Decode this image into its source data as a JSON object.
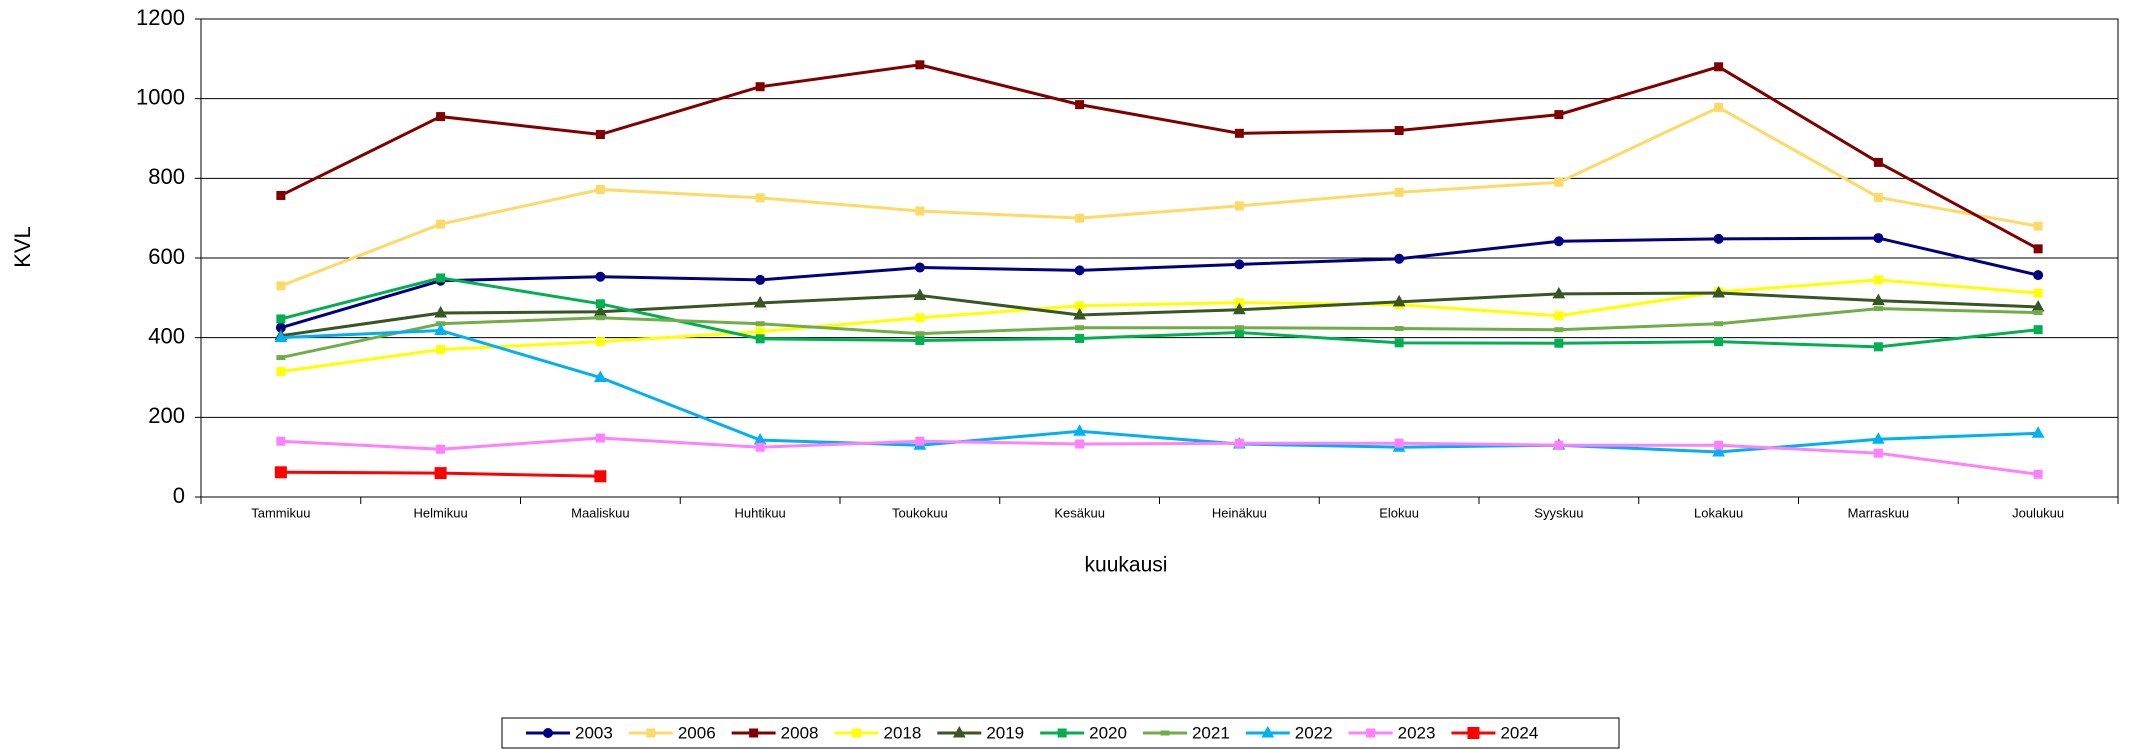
{
  "chart_data": {
    "type": "line",
    "x_label": "kuukausi",
    "y_label": "KVL",
    "categories": [
      "Tammikuu",
      "Helmikuu",
      "Maaliskuu",
      "Huhtikuu",
      "Toukokuu",
      "Kesäkuu",
      "Heinäkuu",
      "Elokuu",
      "Syyskuu",
      "Lokakuu",
      "Marraskuu",
      "Joulukuu"
    ],
    "ylim": [
      0,
      1200
    ],
    "yticks": [
      0,
      200,
      400,
      600,
      800,
      1000,
      1200
    ],
    "grid": true,
    "legend": "bottom",
    "series": [
      {
        "name": "2003",
        "color": "#000080",
        "marker": "circle",
        "values": [
          425,
          543,
          553,
          545,
          576,
          569,
          584,
          598,
          642,
          648,
          650,
          557
        ]
      },
      {
        "name": "2006",
        "color": "#ffd966",
        "marker": "square",
        "values": [
          530,
          685,
          772,
          751,
          718,
          700,
          731,
          765,
          790,
          978,
          752,
          680
        ]
      },
      {
        "name": "2008",
        "color": "#800000",
        "marker": "square",
        "values": [
          757,
          955,
          910,
          1030,
          1085,
          985,
          913,
          920,
          960,
          1080,
          840,
          623
        ]
      },
      {
        "name": "2018",
        "color": "#ffff00",
        "marker": "square",
        "values": [
          315,
          370,
          390,
          415,
          450,
          480,
          488,
          483,
          455,
          515,
          545,
          512
        ]
      },
      {
        "name": "2019",
        "color": "#375623",
        "marker": "triangle",
        "values": [
          405,
          462,
          465,
          487,
          506,
          457,
          470,
          490,
          510,
          512,
          493,
          477
        ]
      },
      {
        "name": "2020",
        "color": "#00b050",
        "marker": "square",
        "values": [
          447,
          550,
          485,
          397,
          393,
          398,
          413,
          387,
          386,
          390,
          377,
          420
        ]
      },
      {
        "name": "2021",
        "color": "#70ad47",
        "marker": "dash",
        "values": [
          350,
          435,
          450,
          435,
          410,
          425,
          425,
          423,
          420,
          435,
          473,
          463
        ]
      },
      {
        "name": "2022",
        "color": "#00b0f0",
        "marker": "triangle",
        "values": [
          400,
          418,
          300,
          143,
          130,
          165,
          133,
          125,
          130,
          113,
          145,
          160
        ]
      },
      {
        "name": "2023",
        "color": "#ff80ff",
        "marker": "square",
        "values": [
          140,
          120,
          148,
          125,
          140,
          133,
          135,
          135,
          130,
          130,
          110,
          57
        ]
      },
      {
        "name": "2024",
        "color": "#ff0000",
        "marker": "bigsquare",
        "values": [
          62,
          60,
          52,
          null,
          null,
          null,
          null,
          null,
          null,
          null,
          null,
          null
        ]
      }
    ]
  }
}
